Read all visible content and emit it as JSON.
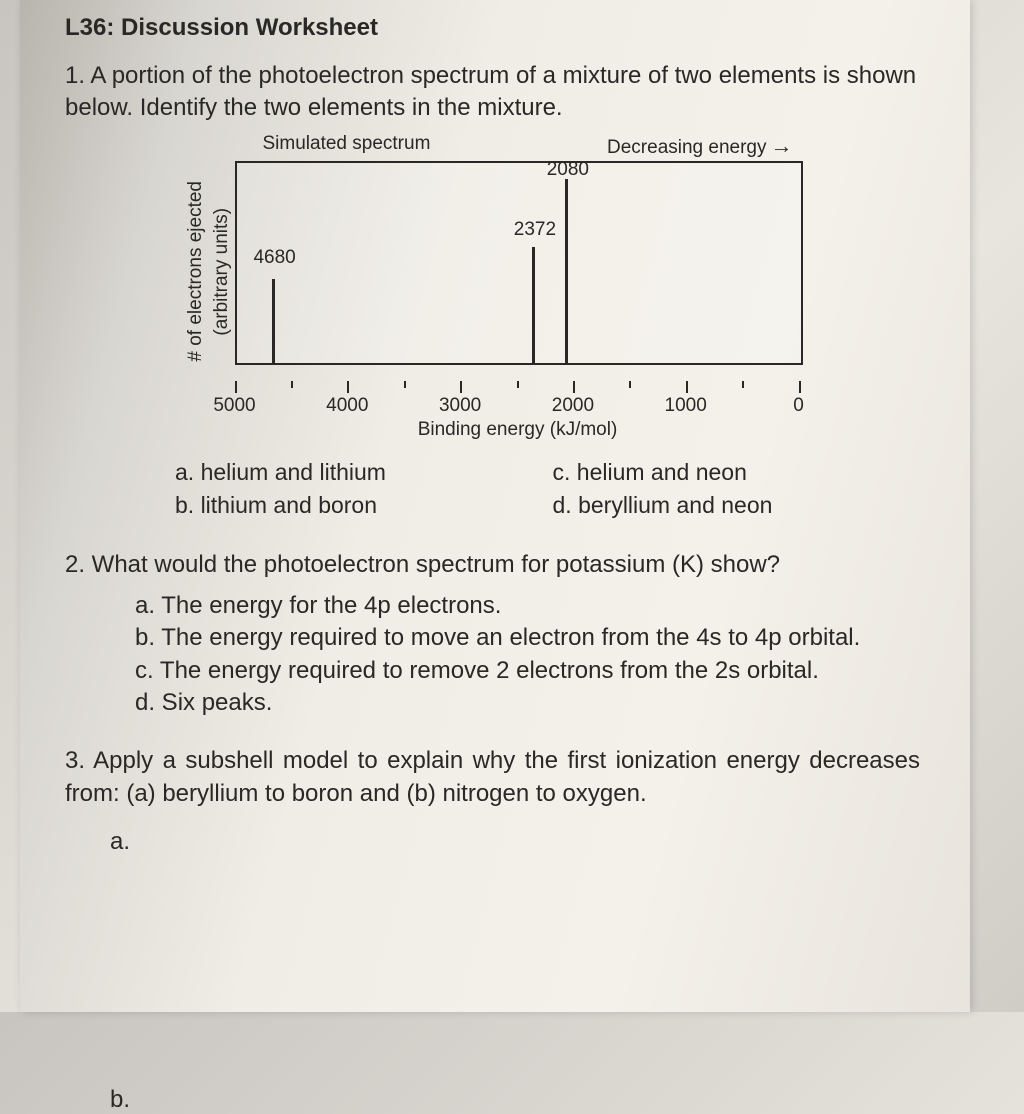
{
  "header": "L36: Discussion Worksheet",
  "q1": {
    "text": "1. A portion of the photoelectron spectrum of a mixture of two elements is shown below. Identify the two elements in the mixture.",
    "options": {
      "a": "a. helium and lithium",
      "b": "b. lithium and boron",
      "c": "c. helium and neon",
      "d": "d. beryllium and neon"
    }
  },
  "chart": {
    "title_left": "Simulated spectrum",
    "title_right": "Decreasing energy",
    "ylabel_outer": "# of electrons ejected",
    "ylabel_inner": "(arbitrary units)",
    "xlabel": "Binding energy (kJ/mol)",
    "xlim": [
      5000,
      0
    ],
    "xticks": [
      5000,
      4000,
      3000,
      2000,
      1000,
      0
    ],
    "peaks": [
      {
        "x": 4680,
        "height_pct": 42,
        "label": "4680",
        "label_top_pct": 42
      },
      {
        "x": 2372,
        "height_pct": 58,
        "label": "2372",
        "label_top_pct": 28
      },
      {
        "x": 2080,
        "height_pct": 92,
        "label": "2080",
        "label_top_pct": -2
      }
    ],
    "border_color": "#2a2826",
    "peak_color": "#2a2826",
    "font_size_pt": 14
  },
  "q2": {
    "text": "2. What would the photoelectron spectrum for potassium (K) show?",
    "options": {
      "a": "a. The energy for the 4p electrons.",
      "b": "b. The energy required to move an electron from the 4s to 4p orbital.",
      "c": "c. The energy required to remove 2 electrons from the 2s orbital.",
      "d": "d. Six peaks."
    }
  },
  "q3": {
    "text": "3. Apply a subshell model to explain why the first ionization energy decreases from: (a) beryllium to boron and (b) nitrogen to oxygen.",
    "sub_a": "a.",
    "sub_b": "b."
  }
}
